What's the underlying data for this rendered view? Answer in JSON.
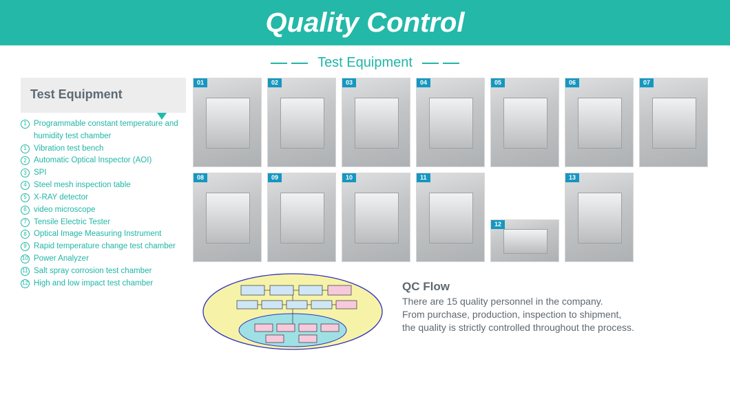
{
  "colors": {
    "teal": "#23b8a8",
    "teal_text": "#1fb6a5",
    "header_text": "#ffffff",
    "sidebar_bg": "#ededed",
    "sidebar_heading": "#5e6a73",
    "body_text": "#5d6870",
    "badge_bg": "#1697c0"
  },
  "header": {
    "title": "Quality Control"
  },
  "section": {
    "title": "Test Equipment"
  },
  "sidebar": {
    "heading": "Test Equipment",
    "items": [
      {
        "num": "1",
        "text": "Programmable constant temperature and humidity test chamber"
      },
      {
        "num": "1",
        "text": "Vibration test bench"
      },
      {
        "num": "2",
        "text": "Automatic Optical Inspector (AOI)"
      },
      {
        "num": "3",
        "text": "SPI"
      },
      {
        "num": "4",
        "text": "Steel mesh inspection table"
      },
      {
        "num": "5",
        "text": "X-RAY detector"
      },
      {
        "num": "6",
        "text": "video microscope"
      },
      {
        "num": "7",
        "text": "Tensile Electric Tester"
      },
      {
        "num": "8",
        "text": "Optical Image Measuring Instrument"
      },
      {
        "num": "9",
        "text": "Rapid temperature change test chamber"
      },
      {
        "num": "10",
        "text": "Power Analyzer"
      },
      {
        "num": "11",
        "text": "Salt spray corrosion test chamber"
      },
      {
        "num": "12",
        "text": "High and low impact test chamber"
      }
    ]
  },
  "photos": {
    "row1": [
      {
        "label": "01"
      },
      {
        "label": "02"
      },
      {
        "label": "03"
      },
      {
        "label": "04"
      },
      {
        "label": "05"
      },
      {
        "label": "06"
      },
      {
        "label": "07"
      }
    ],
    "row2": [
      {
        "label": "08"
      },
      {
        "label": "09"
      },
      {
        "label": "10"
      },
      {
        "label": "11"
      }
    ],
    "row2_stack": [
      {
        "label": "12"
      }
    ],
    "row2_tail": [
      {
        "label": "13"
      }
    ]
  },
  "qc_diagram": {
    "ellipse_fill": "#f6f3a8",
    "ellipse_stroke": "#2f2fbf",
    "inner_ellipse_fill": "#9fe0e4",
    "box_fill_a": "#cfe6f7",
    "box_fill_b": "#f6c9dc",
    "box_stroke": "#333333"
  },
  "qc": {
    "heading": "QC Flow",
    "line1": "There are 15 quality personnel in the company.",
    "line2": "From purchase, production, inspection to shipment,",
    "line3": "the quality is strictly controlled throughout the process."
  }
}
